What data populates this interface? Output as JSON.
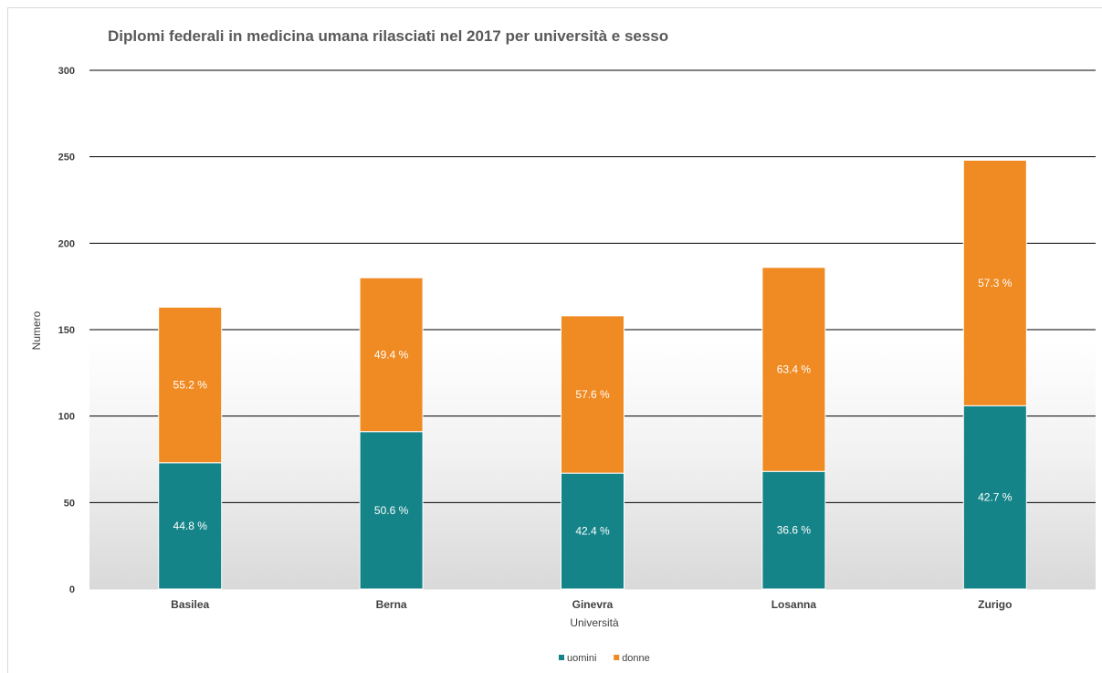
{
  "chart_data": {
    "type": "bar",
    "stacked": true,
    "title": "Diplomi federali in medicina umana rilasciati nel 2017 per università e sesso",
    "xlabel": "Università",
    "ylabel": "Numero",
    "ylim": [
      0,
      300
    ],
    "yticks": [
      "0",
      "50",
      "100",
      "150",
      "200",
      "250",
      "300"
    ],
    "categories": [
      "Basilea",
      "Berna",
      "Ginevra",
      "Losanna",
      "Zurigo"
    ],
    "grid": true,
    "legend_position": "bottom",
    "series": [
      {
        "name": "uomini",
        "color": "#158488",
        "values": [
          73,
          91,
          67,
          68,
          106
        ],
        "labels": [
          "44.8 %",
          "50.6 %",
          "42.4 %",
          "36.6 %",
          "42.7 %"
        ]
      },
      {
        "name": "donne",
        "color": "#F08A22",
        "values": [
          90,
          89,
          91,
          118,
          142
        ],
        "labels": [
          "55.2 %",
          "49.4 %",
          "57.6 %",
          "63.4 %",
          "57.3 %"
        ]
      }
    ]
  }
}
